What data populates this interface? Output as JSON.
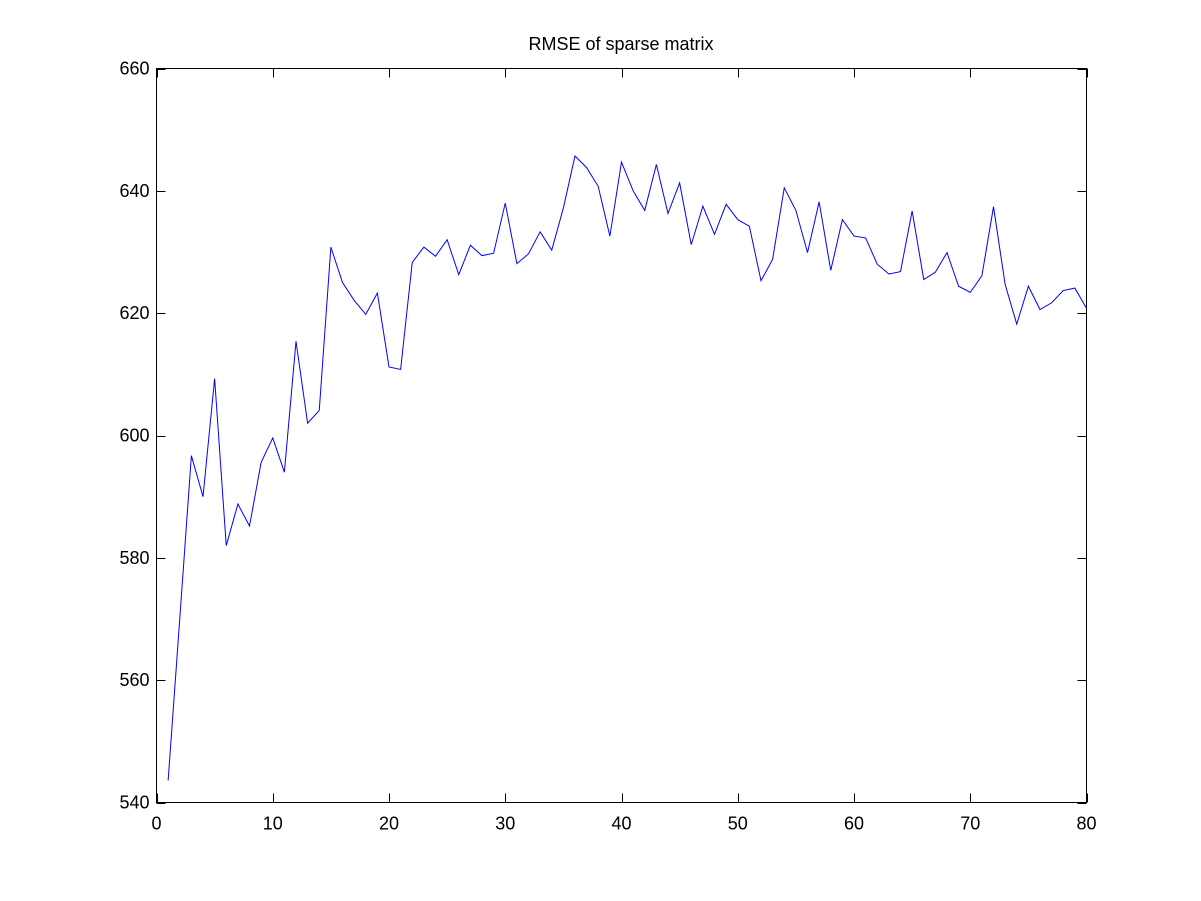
{
  "chart_data": {
    "type": "line",
    "title": "RMSE of sparse matrix",
    "xlabel": "",
    "ylabel": "",
    "xlim": [
      0,
      80
    ],
    "ylim": [
      540,
      660
    ],
    "xticks": [
      0,
      10,
      20,
      30,
      40,
      50,
      60,
      70,
      80
    ],
    "yticks": [
      540,
      560,
      580,
      600,
      620,
      640,
      660
    ],
    "grid": false,
    "line_color": "#0000ff",
    "series": [
      {
        "x": [
          1,
          2,
          3,
          4,
          5,
          6,
          7,
          8,
          9,
          10,
          11,
          12,
          13,
          14,
          15,
          16,
          17,
          18,
          19,
          20,
          21,
          22,
          23,
          24,
          25,
          26,
          27,
          28,
          29,
          30,
          31,
          32,
          33,
          34,
          35,
          36,
          37,
          38,
          39,
          40,
          41,
          42,
          43,
          44,
          45,
          46,
          47,
          48,
          49,
          50,
          51,
          52,
          53,
          54,
          55,
          56,
          57,
          58,
          59,
          60,
          61,
          62,
          63,
          64,
          65,
          66,
          67,
          68,
          69,
          70,
          71,
          72,
          73,
          74,
          75,
          76,
          77,
          78,
          79,
          80
        ],
        "values": [
          543.6,
          570.0,
          596.7,
          590.0,
          609.3,
          582.0,
          588.8,
          585.2,
          595.6,
          599.6,
          594.0,
          615.4,
          602.0,
          604.1,
          630.8,
          625.0,
          622.1,
          619.8,
          623.3,
          611.2,
          610.8,
          628.3,
          630.8,
          629.3,
          632.0,
          626.3,
          631.1,
          629.4,
          629.8,
          638.0,
          628.1,
          629.7,
          633.3,
          630.3,
          637.2,
          645.7,
          643.8,
          640.7,
          632.6,
          644.7,
          640.0,
          636.8,
          644.3,
          636.3,
          641.3,
          631.2,
          637.5,
          632.9,
          637.8,
          635.3,
          634.2,
          625.3,
          628.8,
          640.5,
          636.8,
          629.9,
          638.2,
          627.0,
          635.3,
          632.6,
          632.3,
          628.0,
          626.4,
          626.8,
          636.7,
          625.5,
          626.7,
          629.9,
          624.4,
          623.4,
          626.1,
          637.4,
          624.7,
          618.2,
          624.4,
          620.6,
          621.7,
          623.7,
          624.1,
          620.8
        ]
      }
    ]
  }
}
